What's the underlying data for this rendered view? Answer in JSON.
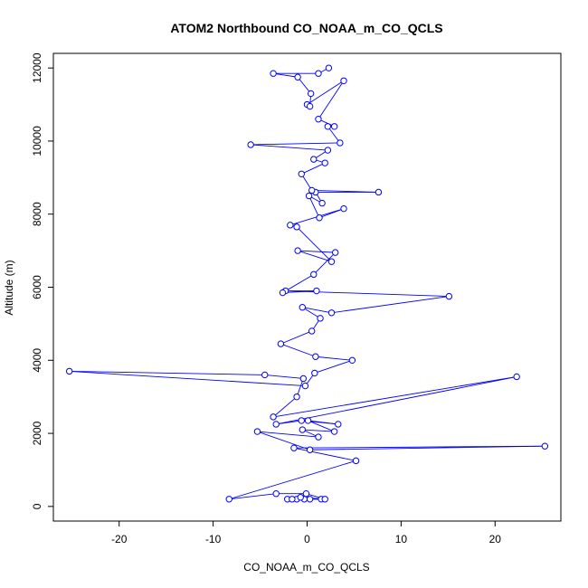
{
  "chart_data": {
    "type": "line",
    "title": "ATOM2 Northbound CO_NOAA_m_CO_QCLS",
    "xlabel": "CO_NOAA_m_CO_QCLS",
    "ylabel": "Altitude (m)",
    "xlim": [
      -27,
      27
    ],
    "ylim": [
      -400,
      12400
    ],
    "x_ticks": [
      -20,
      -10,
      0,
      10,
      20
    ],
    "y_ticks": [
      0,
      2000,
      4000,
      6000,
      8000,
      10000,
      12000
    ],
    "grid": false,
    "legend": "none",
    "series_color": "#0000ff",
    "points": [
      [
        -0.3,
        200
      ],
      [
        -1.1,
        200
      ],
      [
        0.3,
        200
      ],
      [
        -2.1,
        200
      ],
      [
        1.5,
        200
      ],
      [
        -1.6,
        200
      ],
      [
        -0.7,
        250
      ],
      [
        1.9,
        200
      ],
      [
        -0.1,
        350
      ],
      [
        -3.3,
        350
      ],
      [
        -8.3,
        200
      ],
      [
        5.2,
        1250
      ],
      [
        -1.4,
        1600
      ],
      [
        25.3,
        1650
      ],
      [
        0.3,
        1550
      ],
      [
        -5.3,
        2050
      ],
      [
        1.2,
        1900
      ],
      [
        -0.5,
        2100
      ],
      [
        2.9,
        2050
      ],
      [
        0.1,
        2350
      ],
      [
        3.3,
        2250
      ],
      [
        -0.6,
        2350
      ],
      [
        -3.3,
        2250
      ],
      [
        22.3,
        3550
      ],
      [
        -3.6,
        2450
      ],
      [
        -1.1,
        3000
      ],
      [
        -0.4,
        3500
      ],
      [
        -4.5,
        3600
      ],
      [
        -25.3,
        3700
      ],
      [
        -0.2,
        3300
      ],
      [
        0.8,
        3650
      ],
      [
        4.8,
        4000
      ],
      [
        0.9,
        4100
      ],
      [
        -2.8,
        4450
      ],
      [
        0.5,
        4800
      ],
      [
        1.4,
        5150
      ],
      [
        -0.5,
        5450
      ],
      [
        2.6,
        5300
      ],
      [
        15.1,
        5750
      ],
      [
        -2.3,
        5900
      ],
      [
        1.0,
        5900
      ],
      [
        -2.6,
        5850
      ],
      [
        0.7,
        6350
      ],
      [
        3.0,
        6950
      ],
      [
        -1.0,
        7000
      ],
      [
        2.6,
        6700
      ],
      [
        -1.1,
        7650
      ],
      [
        -1.8,
        7700
      ],
      [
        3.9,
        8150
      ],
      [
        1.3,
        7900
      ],
      [
        0.2,
        8500
      ],
      [
        1.6,
        8300
      ],
      [
        0.9,
        8600
      ],
      [
        7.6,
        8600
      ],
      [
        0.5,
        8650
      ],
      [
        -0.6,
        9100
      ],
      [
        1.9,
        9400
      ],
      [
        0.7,
        9500
      ],
      [
        2.2,
        9750
      ],
      [
        -6.0,
        9900
      ],
      [
        3.5,
        9950
      ],
      [
        2.2,
        10400
      ],
      [
        2.9,
        10400
      ],
      [
        1.2,
        10600
      ],
      [
        3.9,
        11650
      ],
      [
        0.0,
        11000
      ],
      [
        0.3,
        10950
      ],
      [
        0.4,
        11300
      ],
      [
        -1.0,
        11750
      ],
      [
        -3.6,
        11850
      ],
      [
        1.2,
        11850
      ],
      [
        2.3,
        12000
      ]
    ]
  }
}
